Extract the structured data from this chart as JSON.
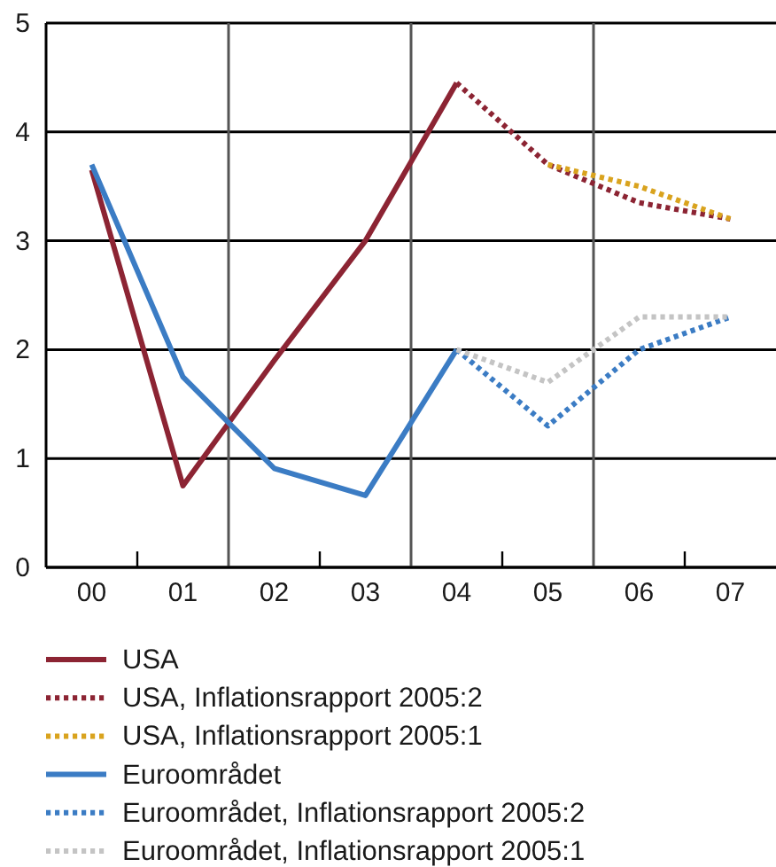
{
  "chart_data": {
    "type": "line",
    "categories": [
      "00",
      "01",
      "02",
      "03",
      "04",
      "05",
      "06",
      "07"
    ],
    "ylim": [
      0,
      5
    ],
    "yticks": [
      0,
      1,
      2,
      3,
      4,
      5
    ],
    "grid": true,
    "legend": "bottom",
    "series": [
      {
        "name": "USA",
        "color": "#8c2433",
        "line_style": "solid",
        "values": [
          3.65,
          0.75,
          1.9,
          3.0,
          4.45,
          null,
          null,
          null
        ]
      },
      {
        "name": "USA, Inflationsrapport 2005:2",
        "color": "#8c2433",
        "line_style": "dotted",
        "values": [
          null,
          null,
          null,
          null,
          4.45,
          3.7,
          3.35,
          3.2
        ]
      },
      {
        "name": "USA, Inflationsrapport 2005:1",
        "color": "#d9a31e",
        "line_style": "dotted",
        "values": [
          null,
          null,
          null,
          null,
          null,
          3.7,
          3.5,
          3.2
        ]
      },
      {
        "name": "Euroområdet",
        "color": "#3b7cc4",
        "line_style": "solid",
        "values": [
          3.7,
          1.75,
          0.91,
          0.66,
          2.0,
          null,
          null,
          null
        ]
      },
      {
        "name": "Euroområdet, Inflationsrapport 2005:2",
        "color": "#3b7cc4",
        "line_style": "dotted",
        "values": [
          null,
          null,
          null,
          null,
          2.0,
          1.3,
          2.0,
          2.3
        ]
      },
      {
        "name": "Euroområdet, Inflationsrapport 2005:1",
        "color": "#c4c4c4",
        "line_style": "dotted",
        "values": [
          null,
          null,
          null,
          null,
          2.0,
          1.7,
          2.3,
          2.3
        ]
      }
    ]
  }
}
